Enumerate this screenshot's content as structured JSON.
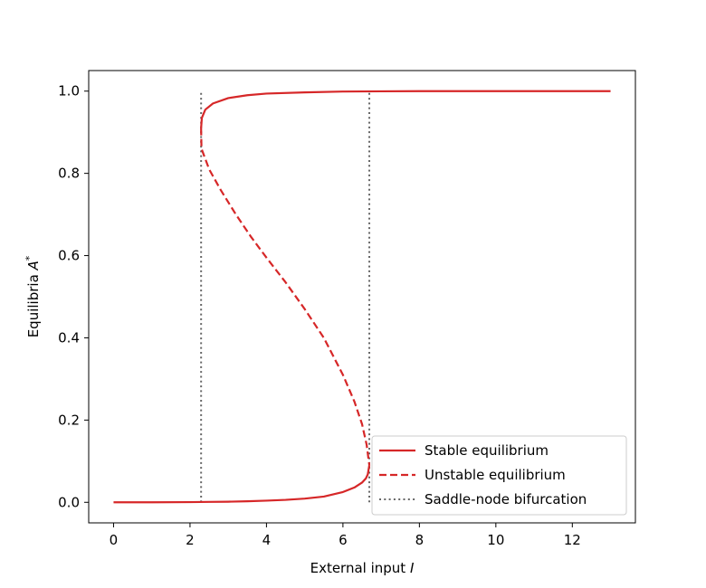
{
  "chart_data": {
    "type": "line",
    "title": "",
    "xlabel": "External input I",
    "ylabel": "Equilibria A*",
    "xlim": [
      -0.65,
      13.65
    ],
    "ylim": [
      -0.05,
      1.05
    ],
    "xticks": [
      0,
      2,
      4,
      6,
      8,
      10,
      12
    ],
    "yticks": [
      0.0,
      0.2,
      0.4,
      0.6,
      0.8,
      1.0
    ],
    "ytick_labels": [
      "0.0",
      "0.2",
      "0.4",
      "0.6",
      "0.8",
      "1.0"
    ],
    "grid": false,
    "legend_position": "lower-right",
    "series": [
      {
        "name": "Stable equilibrium",
        "style": "solid",
        "color": "#d62728",
        "segments": [
          {
            "x": [
              0,
              1,
              2,
              2.5,
              3,
              3.5,
              4,
              4.5,
              5,
              5.5,
              6,
              6.3,
              6.5,
              6.6,
              6.65,
              6.69
            ],
            "y": [
              0.0,
              0.0,
              0.0005,
              0.001,
              0.0015,
              0.0025,
              0.004,
              0.006,
              0.009,
              0.014,
              0.025,
              0.036,
              0.048,
              0.058,
              0.068,
              0.09
            ]
          },
          {
            "x": [
              2.29,
              2.31,
              2.4,
              2.6,
              3.0,
              3.5,
              4.0,
              5.0,
              6.0,
              7.0,
              8.0,
              9.0,
              10.0,
              11.0,
              12.0,
              13.0
            ],
            "y": [
              0.91,
              0.935,
              0.955,
              0.97,
              0.983,
              0.99,
              0.994,
              0.997,
              0.999,
              0.9995,
              1.0,
              1.0,
              1.0,
              1.0,
              1.0,
              1.0
            ]
          }
        ]
      },
      {
        "name": "Unstable equilibrium",
        "style": "dashed",
        "color": "#d62728",
        "segments": [
          {
            "x": [
              2.29,
              2.3,
              2.5,
              2.8,
              3.2,
              3.6,
              4.0,
              4.5,
              5.0,
              5.5,
              6.0,
              6.3,
              6.5,
              6.62,
              6.69
            ],
            "y": [
              0.91,
              0.86,
              0.81,
              0.76,
              0.7,
              0.645,
              0.595,
              0.535,
              0.47,
              0.4,
              0.31,
              0.245,
              0.19,
              0.14,
              0.09
            ]
          }
        ]
      },
      {
        "name": "Saddle-node bifurcation",
        "style": "dotted",
        "color": "#666666",
        "segments": [
          {
            "x": [
              2.29,
              2.29
            ],
            "y": [
              0.0,
              1.0
            ]
          },
          {
            "x": [
              6.69,
              6.69
            ],
            "y": [
              0.0,
              1.0
            ]
          }
        ]
      }
    ]
  }
}
